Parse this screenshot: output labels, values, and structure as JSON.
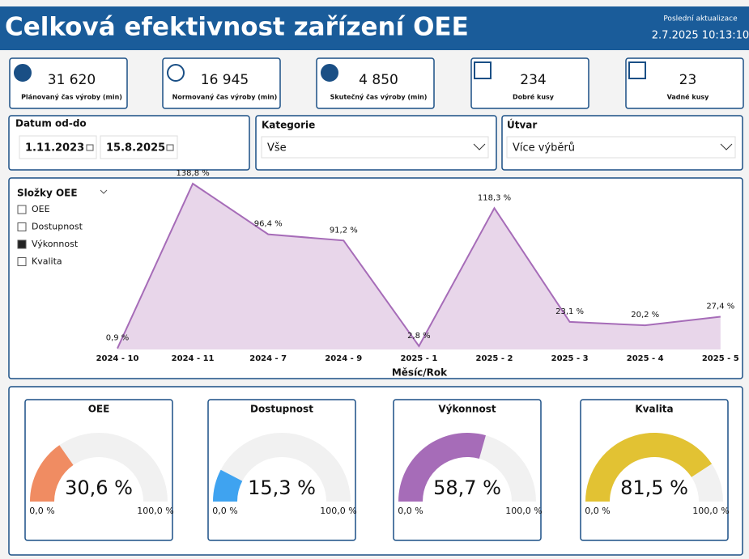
{
  "header": {
    "title": "Celková efektivnost zařízení OEE",
    "update_label": "Poslední aktualizace",
    "update_time": "2.7.2025 10:13:10"
  },
  "kpis": [
    {
      "value": "31 620",
      "label": "Plánovaný čas výroby (min)"
    },
    {
      "value": "16 945",
      "label": "Normovaný čas výroby (min)"
    },
    {
      "value": "4 850",
      "label": "Skutečný čas výroby (min)"
    },
    {
      "value": "234",
      "label": "Dobré kusy"
    },
    {
      "value": "23",
      "label": "Vadné kusy"
    }
  ],
  "filters": {
    "date": {
      "label": "Datum od-do",
      "from": "1.11.2023",
      "to": "15.8.2025"
    },
    "category": {
      "label": "Kategorie",
      "value": "Vše"
    },
    "unit": {
      "label": "Útvar",
      "value": "Více výběrů"
    }
  },
  "area_chart": {
    "type": "area",
    "legend_title": "Složky OEE",
    "legend": [
      {
        "name": "OEE",
        "checked": false
      },
      {
        "name": "Dostupnost",
        "checked": false
      },
      {
        "name": "Výkonnost",
        "checked": true
      },
      {
        "name": "Kvalita",
        "checked": false
      }
    ],
    "x_label": "Měsíc/Rok",
    "categories": [
      "2024 - 10",
      "2024 - 11",
      "2024 - 7",
      "2024 - 9",
      "2025 - 1",
      "2025 - 2",
      "2025 - 3",
      "2025 - 4",
      "2025 - 5"
    ],
    "values": [
      0.9,
      138.8,
      96.4,
      91.2,
      2.8,
      118.3,
      23.1,
      20.2,
      27.4
    ],
    "value_labels": [
      "0,9 %",
      "138,8 %",
      "96,4 %",
      "91,2 %",
      "2,8 %",
      "118,3 %",
      "23,1 %",
      "20,2 %",
      "27,4 %"
    ],
    "color": "#a66cb8",
    "fill": "#e8d6ea"
  },
  "gauges": [
    {
      "type": "gauge",
      "title": "OEE",
      "value": {
        "value": 30.6,
        "label": "30,6 %"
      },
      "min": {
        "value": 0,
        "label": "0,0 %"
      },
      "max": {
        "value": 100,
        "label": "100,0 %"
      },
      "color": "#f08c62"
    },
    {
      "type": "gauge",
      "title": "Dostupnost",
      "value": {
        "value": 15.3,
        "label": "15,3 %"
      },
      "min": {
        "value": 0,
        "label": "0,0 %"
      },
      "max": {
        "value": 100,
        "label": "100,0 %"
      },
      "color": "#3fa3f0"
    },
    {
      "type": "gauge",
      "title": "Výkonnost",
      "value": {
        "value": 58.7,
        "label": "58,7 %"
      },
      "min": {
        "value": 0,
        "label": "0,0 %"
      },
      "max": {
        "value": 100,
        "label": "100,0 %"
      },
      "color": "#a66cb8"
    },
    {
      "type": "gauge",
      "title": "Kvalita",
      "value": {
        "value": 81.5,
        "label": "81,5 %"
      },
      "min": {
        "value": 0,
        "label": "0,0 %"
      },
      "max": {
        "value": 100,
        "label": "100,0 %"
      },
      "color": "#e2c233"
    }
  ]
}
